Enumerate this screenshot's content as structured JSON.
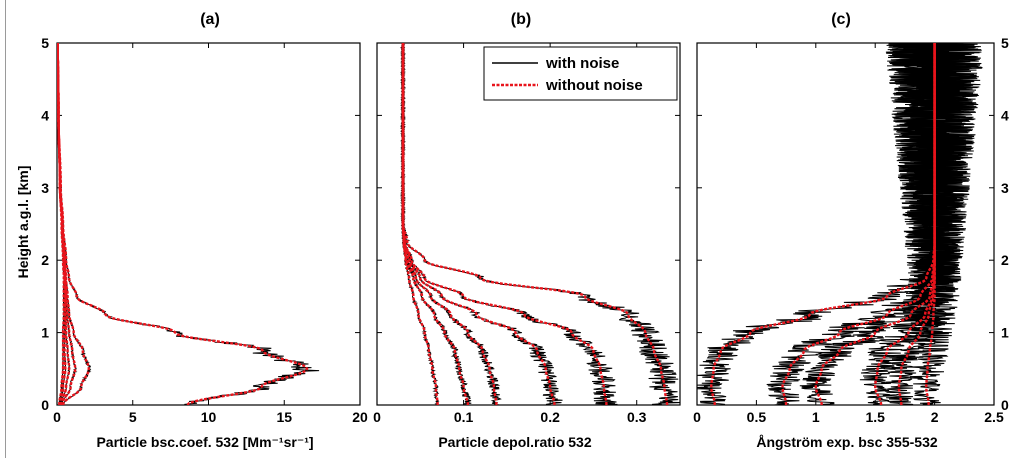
{
  "figure": {
    "ylabel": "Height a.g.l. [km]",
    "legend": {
      "items": [
        "with noise",
        "without noise"
      ],
      "location": "top-right of panel (b)"
    }
  },
  "colors": {
    "with_noise": "#000000",
    "without_noise": "#e8141c",
    "axes": "#000000",
    "background": "#ffffff"
  },
  "chart_data": [
    {
      "type": "line",
      "title": "(a)",
      "xlabel": "Particle bsc.coef. 532 [Mm⁻¹sr⁻¹]",
      "xlim": [
        0,
        20
      ],
      "ylim": [
        0,
        5
      ],
      "xticks": [
        "0",
        "5",
        "10",
        "15",
        "20"
      ],
      "yticks": [
        "0",
        "1",
        "2",
        "3",
        "4",
        "5"
      ],
      "y_axis_side": "left",
      "height_km": [
        0,
        0.25,
        0.5,
        0.75,
        1.0,
        1.25,
        1.5,
        1.75,
        2.0,
        2.5,
        3.0,
        4.0,
        5.0
      ],
      "series": [
        {
          "noisy": true,
          "x": [
            8.6,
            13.5,
            16.5,
            13.6,
            7.8,
            3.2,
            1.3,
            0.8,
            0.6,
            0.4,
            0.25,
            0.1,
            0.05
          ]
        },
        {
          "noisy": true,
          "x": [
            0.4,
            1.6,
            2.1,
            1.7,
            1.1,
            0.8,
            0.7,
            0.6,
            0.5,
            0.35,
            0.2,
            0.1,
            0.05
          ]
        },
        {
          "noisy": true,
          "x": [
            0.3,
            0.9,
            1.2,
            1.0,
            0.8,
            0.65,
            0.6,
            0.55,
            0.5,
            0.35,
            0.2,
            0.1,
            0.05
          ]
        },
        {
          "noisy": true,
          "x": [
            0.25,
            0.6,
            0.8,
            0.7,
            0.6,
            0.55,
            0.55,
            0.5,
            0.45,
            0.35,
            0.2,
            0.1,
            0.05
          ]
        },
        {
          "noisy": true,
          "x": [
            0.2,
            0.4,
            0.55,
            0.5,
            0.5,
            0.5,
            0.5,
            0.5,
            0.45,
            0.35,
            0.2,
            0.1,
            0.05
          ]
        },
        {
          "noisy": true,
          "x": [
            0.15,
            0.3,
            0.4,
            0.4,
            0.4,
            0.45,
            0.45,
            0.45,
            0.4,
            0.3,
            0.2,
            0.1,
            0.05
          ]
        }
      ]
    },
    {
      "type": "line",
      "title": "(b)",
      "xlabel": "Particle depol.ratio 532",
      "xlim": [
        0,
        0.35
      ],
      "ylim": [
        0,
        5
      ],
      "xticks": [
        "0",
        "0.1",
        "0.2",
        "0.3"
      ],
      "y_axis_side": "none",
      "height_km": [
        0,
        0.25,
        0.5,
        0.75,
        1.0,
        1.25,
        1.5,
        1.75,
        2.0,
        2.25,
        2.5,
        3.0,
        4.0,
        5.0
      ],
      "series": [
        {
          "noisy": true,
          "x": [
            0.335,
            0.332,
            0.328,
            0.32,
            0.31,
            0.29,
            0.24,
            0.12,
            0.055,
            0.035,
            0.03,
            0.03,
            0.03,
            0.03
          ]
        },
        {
          "noisy": true,
          "x": [
            0.265,
            0.262,
            0.258,
            0.25,
            0.225,
            0.17,
            0.1,
            0.055,
            0.04,
            0.032,
            0.03,
            0.03,
            0.03,
            0.03
          ]
        },
        {
          "noisy": true,
          "x": [
            0.205,
            0.2,
            0.195,
            0.185,
            0.16,
            0.115,
            0.075,
            0.05,
            0.038,
            0.032,
            0.03,
            0.03,
            0.03,
            0.03
          ]
        },
        {
          "noisy": true,
          "x": [
            0.138,
            0.135,
            0.13,
            0.122,
            0.105,
            0.085,
            0.062,
            0.045,
            0.036,
            0.031,
            0.03,
            0.03,
            0.03,
            0.03
          ]
        },
        {
          "noisy": true,
          "x": [
            0.105,
            0.1,
            0.095,
            0.09,
            0.078,
            0.066,
            0.052,
            0.042,
            0.034,
            0.031,
            0.03,
            0.03,
            0.03,
            0.03
          ]
        },
        {
          "noisy": true,
          "x": [
            0.07,
            0.068,
            0.064,
            0.06,
            0.055,
            0.048,
            0.042,
            0.037,
            0.033,
            0.031,
            0.03,
            0.03,
            0.03,
            0.03
          ]
        }
      ]
    },
    {
      "type": "line",
      "title": "(c)",
      "xlabel": "Ångström exp. bsc 355-532",
      "xlim": [
        0,
        2.5
      ],
      "ylim": [
        0,
        5
      ],
      "xticks": [
        "0",
        "0.5",
        "1",
        "1.5",
        "2",
        "2.5"
      ],
      "yticks": [
        "0",
        "1",
        "2",
        "3",
        "4",
        "5"
      ],
      "y_axis_side": "right",
      "height_km": [
        0,
        0.25,
        0.5,
        0.75,
        1.0,
        1.25,
        1.5,
        1.75,
        2.0,
        2.25,
        2.5,
        3.0,
        4.0,
        5.0
      ],
      "series": [
        {
          "noisy": true,
          "x": [
            0.15,
            0.12,
            0.14,
            0.2,
            0.45,
            0.95,
            1.6,
            1.93,
            1.99,
            2.0,
            2.0,
            2.0,
            2.0,
            2.0
          ]
        },
        {
          "noisy": true,
          "x": [
            0.75,
            0.72,
            0.78,
            0.9,
            1.2,
            1.6,
            1.88,
            1.98,
            2.0,
            2.0,
            2.0,
            2.0,
            2.0,
            2.0
          ]
        },
        {
          "noisy": true,
          "x": [
            1.05,
            1.0,
            1.05,
            1.2,
            1.5,
            1.8,
            1.96,
            1.99,
            2.0,
            2.0,
            2.0,
            2.0,
            2.0,
            2.0
          ]
        },
        {
          "noisy": true,
          "x": [
            1.55,
            1.5,
            1.52,
            1.6,
            1.78,
            1.92,
            1.98,
            2.0,
            2.0,
            2.0,
            2.0,
            2.0,
            2.0,
            2.0
          ]
        },
        {
          "noisy": true,
          "x": [
            1.72,
            1.7,
            1.72,
            1.78,
            1.88,
            1.95,
            1.99,
            2.0,
            2.0,
            2.0,
            2.0,
            2.0,
            2.0,
            2.0
          ]
        },
        {
          "noisy": true,
          "x": [
            1.95,
            1.93,
            1.94,
            1.96,
            1.98,
            1.99,
            2.0,
            2.0,
            2.0,
            2.0,
            2.0,
            2.0,
            2.0,
            2.0
          ]
        }
      ],
      "noise_note_free": null
    }
  ]
}
